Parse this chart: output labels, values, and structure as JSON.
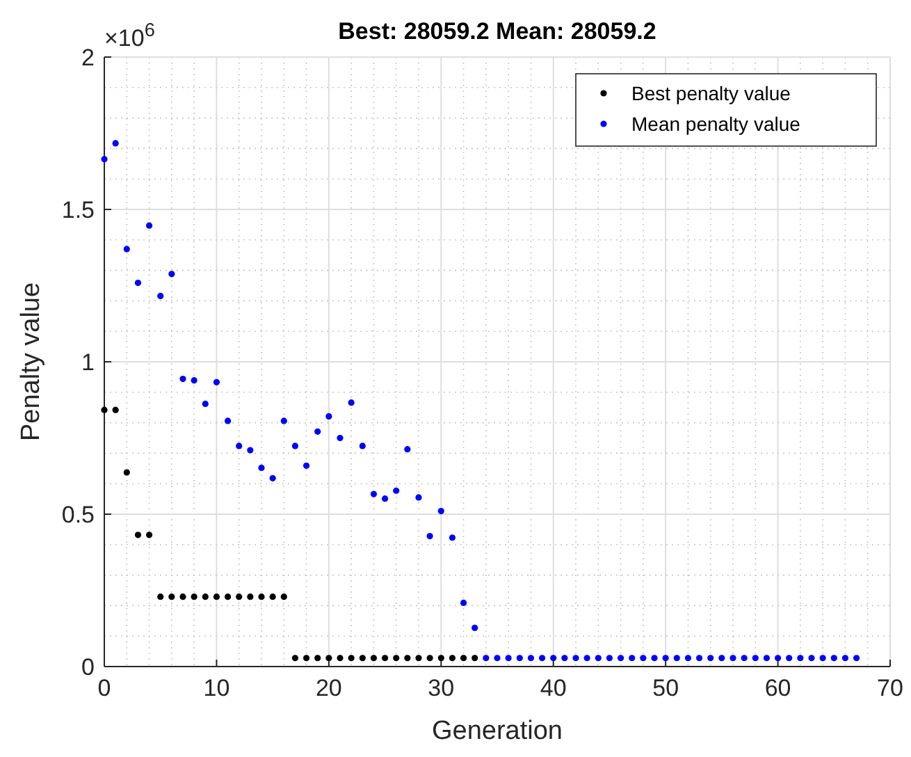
{
  "chart_data": {
    "type": "scatter",
    "title": "Best: 28059.2 Mean: 28059.2",
    "xlabel": "Generation",
    "ylabel": "Penalty value",
    "annotations": [
      "×10$^{6}$"
    ],
    "x": [
      0,
      1,
      2,
      3,
      4,
      5,
      6,
      7,
      8,
      9,
      10,
      11,
      12,
      13,
      14,
      15,
      16,
      17,
      18,
      19,
      20,
      21,
      22,
      23,
      24,
      25,
      26,
      27,
      28,
      29,
      30,
      31,
      32,
      33,
      34,
      35,
      36,
      37,
      38,
      39,
      40,
      41,
      42,
      43,
      44,
      45,
      46,
      47,
      48,
      49,
      50,
      51,
      52,
      53,
      54,
      55,
      56,
      57,
      58,
      59,
      60,
      61,
      62,
      63,
      64,
      65,
      66,
      67
    ],
    "series": [
      {
        "name": "Best penalty value",
        "color": "#000000",
        "values": [
          0.842,
          0.842,
          0.637,
          0.432,
          0.432,
          0.229,
          0.229,
          0.229,
          0.229,
          0.229,
          0.229,
          0.229,
          0.229,
          0.229,
          0.229,
          0.229,
          0.229,
          0.028,
          0.028,
          0.028,
          0.028,
          0.028,
          0.028,
          0.028,
          0.028,
          0.028,
          0.028,
          0.028,
          0.028,
          0.028,
          0.028,
          0.028,
          0.028,
          0.028,
          null,
          null,
          null,
          null,
          null,
          null,
          null,
          null,
          null,
          null,
          null,
          null,
          null,
          null,
          null,
          null,
          null,
          null,
          null,
          null,
          null,
          null,
          null,
          null,
          null,
          null,
          null,
          null,
          null,
          null,
          null,
          null,
          null,
          null
        ]
      },
      {
        "name": "Mean penalty value",
        "color": "#0000ff",
        "values": [
          1.665,
          1.717,
          1.37,
          1.259,
          1.447,
          1.216,
          1.288,
          0.944,
          0.939,
          0.862,
          0.933,
          0.806,
          0.724,
          0.71,
          0.652,
          0.618,
          0.806,
          0.724,
          0.659,
          0.771,
          0.821,
          0.75,
          0.866,
          0.724,
          0.566,
          0.551,
          0.577,
          0.713,
          0.555,
          0.428,
          0.51,
          0.423,
          0.209,
          0.127,
          0.028,
          0.028,
          0.028,
          0.028,
          0.028,
          0.028,
          0.028,
          0.028,
          0.028,
          0.028,
          0.028,
          0.028,
          0.028,
          0.028,
          0.028,
          0.028,
          0.028,
          0.028,
          0.028,
          0.028,
          0.028,
          0.028,
          0.028,
          0.028,
          0.028,
          0.028,
          0.028,
          0.028,
          0.028,
          0.028,
          0.028,
          0.028,
          0.028,
          0.028
        ]
      }
    ],
    "xlim": [
      0,
      70
    ],
    "xticks": [
      0,
      10,
      20,
      30,
      40,
      50,
      60,
      70
    ],
    "ylim": [
      0,
      2
    ],
    "yticks": [
      0,
      0.5,
      1,
      1.5,
      2
    ],
    "grid": true,
    "legend": "top right",
    "marker": "circle"
  }
}
